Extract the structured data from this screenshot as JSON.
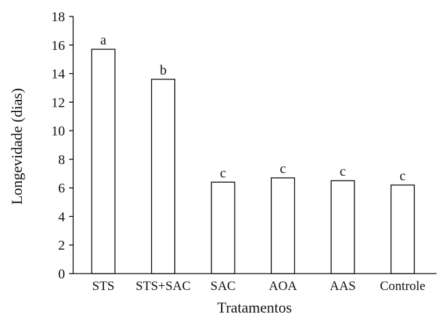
{
  "chart_data": {
    "type": "bar",
    "categories": [
      "STS",
      "STS+SAC",
      "SAC",
      "AOA",
      "AAS",
      "Controle"
    ],
    "values": [
      15.7,
      13.6,
      6.4,
      6.7,
      6.5,
      6.2
    ],
    "bar_labels": [
      "a",
      "b",
      "c",
      "c",
      "c",
      "c"
    ],
    "xlabel": "Tratamentos",
    "ylabel": "Longevidade (dias)",
    "ylim": [
      0,
      18
    ],
    "yticks": [
      0,
      2,
      4,
      6,
      8,
      10,
      12,
      14,
      16,
      18
    ],
    "grid": false,
    "bar_fill": "#ffffff",
    "bar_stroke": "#000000"
  }
}
